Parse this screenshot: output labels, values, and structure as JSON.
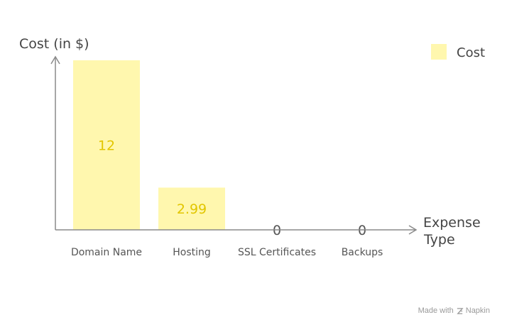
{
  "chart_data": {
    "type": "bar",
    "categories": [
      "Domain Name",
      "Hosting",
      "SSL Certificates",
      "Backups"
    ],
    "series": [
      {
        "name": "Cost",
        "values": [
          12,
          2.99,
          0,
          0
        ]
      }
    ],
    "value_labels": [
      "12",
      "2.99",
      "0",
      "0"
    ],
    "ylabel": "Cost (in $)",
    "xlabel": "Expense Type",
    "ylim": [
      0,
      12
    ],
    "grid": false,
    "legend": "top-right",
    "colors": {
      "bar": "#FFF7AE",
      "value_label": "#E2C600",
      "zero_label": "#555555",
      "axis": "#8a8a8a"
    }
  },
  "footer": {
    "made_with": "Made with",
    "brand": "Napkin"
  }
}
